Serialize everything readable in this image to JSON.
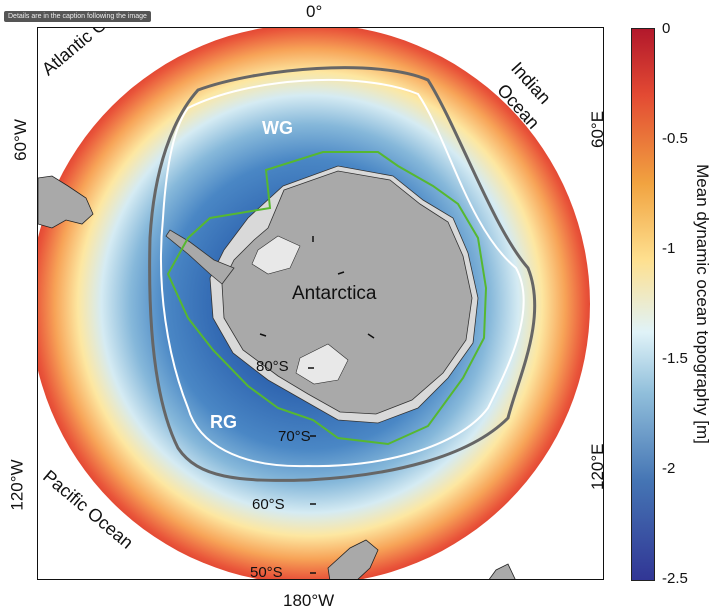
{
  "caption_note": "Details are in the caption following the image",
  "lon_labels": {
    "top": "0°",
    "bottom": "180°W",
    "left_upper": "60°W",
    "left_lower": "120°W",
    "right_upper": "60°E",
    "right_lower": "120°E"
  },
  "lat_labels": [
    "80°S",
    "70°S",
    "60°S",
    "50°S"
  ],
  "oceans": {
    "atlantic": "Atlantic Ocean",
    "indian_line1": "Indian",
    "indian_line2": "Ocean",
    "pacific": "Pacific Ocean"
  },
  "continent_label": "Antarctica",
  "gyre_labels": {
    "weddell": "WG",
    "ross": "RG"
  },
  "colorbar": {
    "title": "Mean dynamic ocean topography [m]",
    "ticks": [
      "0",
      "-0.5",
      "-1",
      "-1.5",
      "-2",
      "-2.5"
    ],
    "range": [
      -2.5,
      0
    ],
    "colors": [
      "#b2182b",
      "#e34a33",
      "#f1a340",
      "#fee090",
      "#e0f3f8",
      "#91bfdb",
      "#4575b4",
      "#313695"
    ]
  },
  "colors": {
    "land": "#a9a9a9",
    "ice_shelf": "#d9d9d9",
    "gyre_contour": "#ffffff",
    "front_contour": "#666666",
    "green_contour": "#56b830"
  }
}
